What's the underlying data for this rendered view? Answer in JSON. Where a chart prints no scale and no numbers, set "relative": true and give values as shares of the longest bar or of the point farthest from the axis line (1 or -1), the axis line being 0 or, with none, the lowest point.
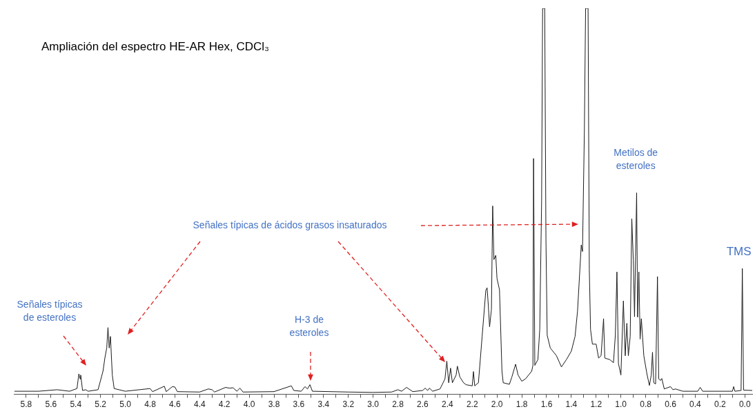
{
  "chart_data": {
    "type": "line",
    "title": "Ampliación del espectro HE-AR Hex, CDCl₃",
    "relative": true,
    "grid": false,
    "legend": false,
    "marker": "none",
    "line_style": "solid",
    "tick_labels": "x",
    "xlim": [
      5.9,
      -0.06
    ],
    "xticks": [
      5.8,
      {
        "value": 5.7,
        "label": null
      },
      5.6,
      {
        "value": 5.5,
        "label": null
      },
      5.4,
      {
        "value": 5.3,
        "label": null
      },
      5.2,
      {
        "value": 5.1,
        "label": null
      },
      {
        "value": 5.0,
        "label": "5.0"
      },
      {
        "value": 4.9,
        "label": null
      },
      4.8,
      {
        "value": 4.7,
        "label": null
      },
      4.6,
      {
        "value": 4.5,
        "label": null
      },
      4.4,
      {
        "value": 4.3,
        "label": null
      },
      4.2,
      {
        "value": 4.1,
        "label": null
      },
      {
        "value": 4.0,
        "label": "4.0"
      },
      {
        "value": 3.9,
        "label": null
      },
      3.8,
      {
        "value": 3.7,
        "label": null
      },
      3.6,
      {
        "value": 3.5,
        "label": null
      },
      3.4,
      {
        "value": 3.3,
        "label": null
      },
      3.2,
      {
        "value": 3.1,
        "label": null
      },
      {
        "value": 3.0,
        "label": "3.0"
      },
      {
        "value": 2.9,
        "label": null
      },
      2.8,
      {
        "value": 2.7,
        "label": null
      },
      2.6,
      {
        "value": 2.5,
        "label": null
      },
      2.4,
      {
        "value": 2.3,
        "label": null
      },
      2.2,
      {
        "value": 2.1,
        "label": null
      },
      {
        "value": 2.0,
        "label": "2.0"
      },
      {
        "value": 1.9,
        "label": null
      },
      1.8,
      {
        "value": 1.7,
        "label": null
      },
      1.6,
      {
        "value": 1.5,
        "label": null
      },
      1.4,
      {
        "value": 1.3,
        "label": null
      },
      1.2,
      {
        "value": 1.1,
        "label": null
      },
      {
        "value": 1.0,
        "label": "1.0"
      },
      {
        "value": 0.9,
        "label": null
      },
      0.8,
      {
        "value": 0.7,
        "label": null
      },
      0.6,
      {
        "value": 0.5,
        "label": null
      },
      0.4,
      {
        "value": 0.3,
        "label": null
      },
      0.2,
      {
        "value": 0.1,
        "label": null
      },
      {
        "value": 0,
        "label": "0.0"
      }
    ],
    "series": [
      {
        "color": "#1a1a1a",
        "x": [
          5.895,
          5.7,
          5.55,
          5.45,
          5.39,
          5.375,
          5.365,
          5.36,
          5.345,
          5.32,
          5.3,
          5.22,
          5.18,
          5.165,
          5.15,
          5.14,
          5.13,
          5.12,
          5.105,
          5.09,
          5.0,
          4.8,
          4.78,
          4.685,
          4.67,
          4.62,
          4.6,
          4.58,
          4.4,
          4.33,
          4.3,
          4.28,
          4.19,
          4.16,
          4.13,
          4.1,
          4.075,
          4.05,
          3.8,
          3.66,
          3.64,
          3.58,
          3.55,
          3.53,
          3.51,
          3.49,
          3.2,
          3.0,
          2.85,
          2.8,
          2.77,
          2.73,
          2.68,
          2.6,
          2.58,
          2.56,
          2.545,
          2.52,
          2.46,
          2.42,
          2.405,
          2.39,
          2.375,
          2.36,
          2.33,
          2.32,
          2.3,
          2.27,
          2.25,
          2.2,
          2.19,
          2.18,
          2.15,
          2.12,
          2.09,
          2.08,
          2.07,
          2.06,
          2.045,
          2.035,
          2.025,
          2.01,
          2.0,
          1.98,
          1.96,
          1.95,
          1.9,
          1.88,
          1.85,
          1.83,
          1.8,
          1.77,
          1.72,
          1.71,
          1.705,
          1.695,
          1.67,
          1.655,
          1.64,
          1.632,
          1.615,
          1.605,
          1.595,
          1.57,
          1.55,
          1.52,
          1.48,
          1.44,
          1.4,
          1.37,
          1.35,
          1.33,
          1.32,
          1.31,
          1.295,
          1.285,
          1.265,
          1.255,
          1.245,
          1.23,
          1.2,
          1.18,
          1.16,
          1.14,
          1.13,
          1.09,
          1.06,
          1.045,
          1.032,
          1.02,
          1.0,
          0.98,
          0.965,
          0.952,
          0.94,
          0.925,
          0.912,
          0.9,
          0.89,
          0.882,
          0.873,
          0.865,
          0.855,
          0.845,
          0.835,
          0.815,
          0.79,
          0.77,
          0.755,
          0.745,
          0.735,
          0.72,
          0.705,
          0.695,
          0.68,
          0.67,
          0.65,
          0.6,
          0.58,
          0.56,
          0.5,
          0.38,
          0.36,
          0.34,
          0.1,
          0.09,
          0.08,
          0.03,
          0.02,
          0.01,
          -0.06
        ],
        "values": [
          0.008,
          0.008,
          0.012,
          0.008,
          0.015,
          0.053,
          0.04,
          0.05,
          0.01,
          0.012,
          0.008,
          0.012,
          0.06,
          0.094,
          0.12,
          0.173,
          0.12,
          0.15,
          0.05,
          0.015,
          0.008,
          0.015,
          0.007,
          0.021,
          0.007,
          0.02,
          0.019,
          0.007,
          0.006,
          0.014,
          0.012,
          0.006,
          0.018,
          0.016,
          0.017,
          0.008,
          0.016,
          0.006,
          0.007,
          0.022,
          0.01,
          0.008,
          0.02,
          0.014,
          0.025,
          0.008,
          0.006,
          0.005,
          0.006,
          0.012,
          0.008,
          0.018,
          0.007,
          0.01,
          0.016,
          0.01,
          0.016,
          0.008,
          0.014,
          0.04,
          0.086,
          0.03,
          0.068,
          0.03,
          0.05,
          0.073,
          0.045,
          0.03,
          0.025,
          0.022,
          0.059,
          0.022,
          0.03,
          0.15,
          0.27,
          0.276,
          0.23,
          0.175,
          0.22,
          0.488,
          0.349,
          0.36,
          0.3,
          0.271,
          0.06,
          0.03,
          0.026,
          0.045,
          0.078,
          0.05,
          0.034,
          0.04,
          0.06,
          0.075,
          0.611,
          0.075,
          0.09,
          0.168,
          0.5,
          1,
          1,
          0.4,
          0.153,
          0.12,
          0.112,
          0.1,
          0.071,
          0.09,
          0.112,
          0.15,
          0.216,
          0.33,
          0.387,
          0.37,
          0.68,
          1,
          1,
          0.324,
          0.168,
          0.13,
          0.13,
          0.094,
          0.1,
          0.196,
          0.094,
          0.09,
          0.082,
          0.153,
          0.317,
          0.08,
          0.05,
          0.242,
          0.1,
          0.184,
          0.1,
          0.15,
          0.455,
          0.349,
          0.201,
          0.356,
          0.522,
          0.2,
          0.317,
          0.143,
          0.196,
          0.1,
          0.053,
          0.023,
          0.05,
          0.109,
          0.03,
          0.027,
          0.305,
          0.04,
          0.036,
          0.041,
          0.014,
          0.02,
          0.012,
          0.014,
          0.008,
          0.008,
          0.018,
          0.008,
          0.008,
          0.02,
          0.008,
          0.01,
          0.326,
          0.011,
          0.01
        ]
      }
    ],
    "annotations": [
      "Señales típicas de esteroles",
      "Señales típicas de ácidos grasos insaturados",
      "H-3 de esteroles",
      {
        "text": "Metilos de esteroles",
        "x": 0.88,
        "y": 0.522
      },
      {
        "text": "TMS",
        "x": 0.02,
        "y": 0.326
      }
    ]
  }
}
